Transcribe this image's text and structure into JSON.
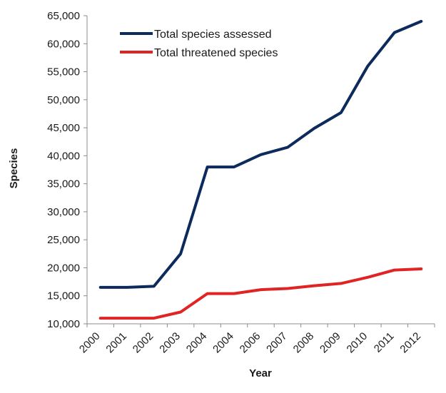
{
  "chart_data": {
    "type": "line",
    "title": "",
    "xlabel": "Year",
    "ylabel": "Species",
    "categories": [
      "2000",
      "2001",
      "2002",
      "2003",
      "2004",
      "2004",
      "2006",
      "2007",
      "2008",
      "2009",
      "2010",
      "2011",
      "2012"
    ],
    "ylim": [
      10000,
      65000
    ],
    "y_ticks": [
      "10,000",
      "15,000",
      "20,000",
      "25,000",
      "30,000",
      "35,000",
      "40,000",
      "45,000",
      "50,000",
      "55,000",
      "60,000",
      "65,000"
    ],
    "grid": false,
    "legend_position": "top-center",
    "series": [
      {
        "name": "Total species assessed",
        "color": "#0d2a5c",
        "values": [
          16500,
          16500,
          16700,
          22500,
          38000,
          38000,
          40200,
          41500,
          44900,
          47700,
          56000,
          62000,
          64000
        ]
      },
      {
        "name": "Total threatened species",
        "color": "#e02424",
        "values": [
          11000,
          11000,
          11000,
          12100,
          15400,
          15400,
          16100,
          16300,
          16800,
          17200,
          18300,
          19600,
          19800
        ]
      }
    ]
  }
}
